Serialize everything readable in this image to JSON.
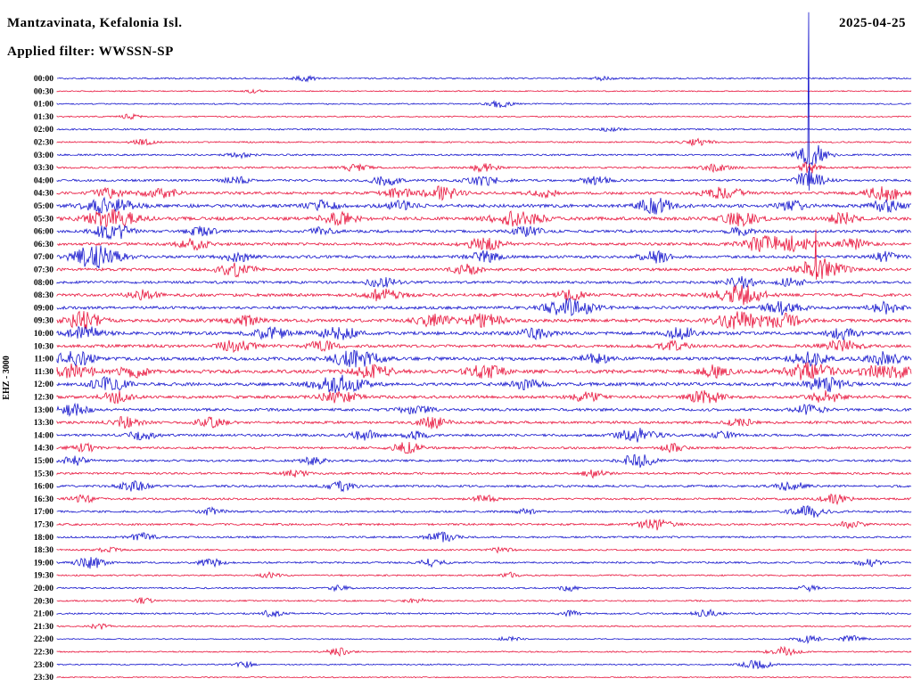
{
  "header": {
    "station_title": "Mantzavinata, Kefalonia Isl.",
    "filter_label": "Applied filter: WWSSN-SP",
    "date": "2025-04-25"
  },
  "axis": {
    "left_label": "EHZ - 3000"
  },
  "chart_data": {
    "type": "line",
    "subtype": "helicorder-seismogram",
    "title": "Mantzavinata, Kefalonia Isl.",
    "filter": "WWSSN-SP",
    "date": "2025-04-25",
    "channel_scale_label": "EHZ - 3000",
    "row_interval_minutes": 30,
    "xlabel": "",
    "ylabel": "",
    "grid": false,
    "legend": "none",
    "colors": {
      "blue": "#1414cc",
      "red": "#e8143c"
    },
    "rows": [
      {
        "label": "00:00",
        "color": "blue",
        "noise": 0.8,
        "bursts": [
          [
            0.29,
            0.01,
            2.5
          ],
          [
            0.64,
            0.008,
            2
          ]
        ]
      },
      {
        "label": "00:30",
        "color": "red",
        "noise": 0.6,
        "bursts": [
          [
            0.23,
            0.006,
            2
          ]
        ]
      },
      {
        "label": "01:00",
        "color": "blue",
        "noise": 0.7,
        "bursts": [
          [
            0.52,
            0.01,
            4
          ]
        ]
      },
      {
        "label": "01:30",
        "color": "red",
        "noise": 0.7,
        "bursts": [
          [
            0.085,
            0.008,
            2.5
          ]
        ]
      },
      {
        "label": "02:00",
        "color": "blue",
        "noise": 0.8,
        "bursts": [
          [
            0.65,
            0.01,
            2
          ]
        ]
      },
      {
        "label": "02:30",
        "color": "red",
        "noise": 0.8,
        "bursts": [
          [
            0.1,
            0.01,
            3
          ],
          [
            0.75,
            0.012,
            3.5
          ]
        ]
      },
      {
        "label": "03:00",
        "color": "blue",
        "noise": 0.9,
        "bursts": [
          [
            0.215,
            0.01,
            3
          ],
          [
            0.88,
            0.0012,
            160
          ],
          [
            0.885,
            0.012,
            12
          ]
        ]
      },
      {
        "label": "03:30",
        "color": "red",
        "noise": 1.0,
        "bursts": [
          [
            0.35,
            0.012,
            4
          ],
          [
            0.5,
            0.012,
            4
          ],
          [
            0.77,
            0.012,
            4
          ],
          [
            0.88,
            0.008,
            6
          ]
        ]
      },
      {
        "label": "04:00",
        "color": "blue",
        "noise": 1.2,
        "bursts": [
          [
            0.21,
            0.01,
            4
          ],
          [
            0.385,
            0.012,
            5
          ],
          [
            0.5,
            0.015,
            5
          ],
          [
            0.63,
            0.012,
            4
          ],
          [
            0.88,
            0.012,
            10
          ]
        ]
      },
      {
        "label": "04:30",
        "color": "red",
        "noise": 1.5,
        "bursts": [
          [
            0.06,
            0.012,
            5
          ],
          [
            0.12,
            0.015,
            6
          ],
          [
            0.4,
            0.012,
            5
          ],
          [
            0.45,
            0.015,
            7
          ],
          [
            0.57,
            0.012,
            4
          ],
          [
            0.78,
            0.015,
            7
          ],
          [
            0.97,
            0.015,
            8
          ]
        ]
      },
      {
        "label": "05:00",
        "color": "blue",
        "noise": 1.8,
        "bursts": [
          [
            0.06,
            0.02,
            8
          ],
          [
            0.31,
            0.012,
            5
          ],
          [
            0.4,
            0.012,
            5
          ],
          [
            0.7,
            0.015,
            8
          ],
          [
            0.86,
            0.012,
            5
          ],
          [
            0.97,
            0.012,
            6
          ]
        ]
      },
      {
        "label": "05:30",
        "color": "red",
        "noise": 1.8,
        "bursts": [
          [
            0.065,
            0.02,
            10
          ],
          [
            0.33,
            0.015,
            6
          ],
          [
            0.54,
            0.02,
            8
          ],
          [
            0.8,
            0.015,
            7
          ],
          [
            0.92,
            0.012,
            6
          ]
        ]
      },
      {
        "label": "06:00",
        "color": "blue",
        "noise": 1.5,
        "bursts": [
          [
            0.065,
            0.015,
            9
          ],
          [
            0.17,
            0.012,
            5
          ],
          [
            0.31,
            0.01,
            4
          ],
          [
            0.55,
            0.012,
            5
          ],
          [
            0.8,
            0.01,
            4
          ]
        ]
      },
      {
        "label": "06:30",
        "color": "red",
        "noise": 1.5,
        "bursts": [
          [
            0.16,
            0.012,
            6
          ],
          [
            0.5,
            0.015,
            6
          ],
          [
            0.82,
            0.015,
            7
          ],
          [
            0.86,
            0.02,
            8
          ],
          [
            0.93,
            0.012,
            6
          ]
        ]
      },
      {
        "label": "07:00",
        "color": "blue",
        "noise": 1.5,
        "bursts": [
          [
            0.045,
            0.02,
            12
          ],
          [
            0.21,
            0.012,
            5
          ],
          [
            0.5,
            0.012,
            6
          ],
          [
            0.7,
            0.012,
            6
          ],
          [
            0.97,
            0.01,
            5
          ]
        ]
      },
      {
        "label": "07:30",
        "color": "red",
        "noise": 1.5,
        "bursts": [
          [
            0.21,
            0.015,
            7
          ],
          [
            0.48,
            0.012,
            5
          ],
          [
            0.888,
            0.0015,
            45
          ],
          [
            0.893,
            0.018,
            12
          ]
        ]
      },
      {
        "label": "08:00",
        "color": "blue",
        "noise": 1.4,
        "bursts": [
          [
            0.38,
            0.012,
            5
          ],
          [
            0.8,
            0.012,
            6
          ],
          [
            0.86,
            0.01,
            5
          ]
        ]
      },
      {
        "label": "08:30",
        "color": "red",
        "noise": 1.6,
        "bursts": [
          [
            0.1,
            0.012,
            5
          ],
          [
            0.38,
            0.015,
            6
          ],
          [
            0.6,
            0.012,
            5
          ],
          [
            0.8,
            0.02,
            10
          ]
        ]
      },
      {
        "label": "09:00",
        "color": "blue",
        "noise": 1.6,
        "bursts": [
          [
            0.6,
            0.02,
            9
          ],
          [
            0.85,
            0.015,
            7
          ],
          [
            0.97,
            0.012,
            6
          ]
        ]
      },
      {
        "label": "09:30",
        "color": "red",
        "noise": 1.8,
        "bursts": [
          [
            0.03,
            0.015,
            9
          ],
          [
            0.22,
            0.012,
            5
          ],
          [
            0.44,
            0.015,
            6
          ],
          [
            0.5,
            0.015,
            7
          ],
          [
            0.8,
            0.02,
            9
          ],
          [
            0.85,
            0.015,
            7
          ]
        ]
      },
      {
        "label": "10:00",
        "color": "blue",
        "noise": 1.8,
        "bursts": [
          [
            0.03,
            0.015,
            8
          ],
          [
            0.25,
            0.015,
            6
          ],
          [
            0.33,
            0.015,
            7
          ],
          [
            0.56,
            0.012,
            6
          ],
          [
            0.73,
            0.012,
            6
          ],
          [
            0.92,
            0.012,
            6
          ]
        ]
      },
      {
        "label": "10:30",
        "color": "red",
        "noise": 1.6,
        "bursts": [
          [
            0.21,
            0.015,
            6
          ],
          [
            0.31,
            0.012,
            5
          ],
          [
            0.72,
            0.012,
            5
          ],
          [
            0.92,
            0.015,
            6
          ]
        ]
      },
      {
        "label": "11:00",
        "color": "blue",
        "noise": 1.8,
        "bursts": [
          [
            0.02,
            0.015,
            8
          ],
          [
            0.35,
            0.02,
            9
          ],
          [
            0.63,
            0.012,
            5
          ],
          [
            0.88,
            0.015,
            7
          ],
          [
            0.97,
            0.015,
            7
          ]
        ]
      },
      {
        "label": "11:30",
        "color": "red",
        "noise": 2.0,
        "bursts": [
          [
            0.02,
            0.015,
            8
          ],
          [
            0.09,
            0.012,
            6
          ],
          [
            0.37,
            0.015,
            7
          ],
          [
            0.5,
            0.015,
            7
          ],
          [
            0.77,
            0.012,
            6
          ],
          [
            0.88,
            0.02,
            9
          ],
          [
            0.97,
            0.02,
            8
          ]
        ]
      },
      {
        "label": "12:00",
        "color": "blue",
        "noise": 1.8,
        "bursts": [
          [
            0.06,
            0.015,
            7
          ],
          [
            0.33,
            0.02,
            9
          ],
          [
            0.55,
            0.012,
            5
          ],
          [
            0.9,
            0.015,
            8
          ]
        ]
      },
      {
        "label": "12:30",
        "color": "red",
        "noise": 1.6,
        "bursts": [
          [
            0.07,
            0.012,
            6
          ],
          [
            0.33,
            0.015,
            6
          ],
          [
            0.62,
            0.012,
            5
          ],
          [
            0.76,
            0.015,
            7
          ],
          [
            0.9,
            0.012,
            6
          ]
        ]
      },
      {
        "label": "13:00",
        "color": "blue",
        "noise": 1.5,
        "bursts": [
          [
            0.02,
            0.012,
            6
          ],
          [
            0.42,
            0.012,
            5
          ],
          [
            0.88,
            0.012,
            5
          ]
        ]
      },
      {
        "label": "13:30",
        "color": "red",
        "noise": 1.4,
        "bursts": [
          [
            0.08,
            0.012,
            6
          ],
          [
            0.18,
            0.012,
            5
          ],
          [
            0.44,
            0.012,
            6
          ],
          [
            0.8,
            0.01,
            4
          ]
        ]
      },
      {
        "label": "14:00",
        "color": "blue",
        "noise": 1.3,
        "bursts": [
          [
            0.1,
            0.012,
            5
          ],
          [
            0.36,
            0.012,
            5
          ],
          [
            0.42,
            0.01,
            4
          ],
          [
            0.68,
            0.015,
            8
          ],
          [
            0.78,
            0.01,
            4
          ]
        ]
      },
      {
        "label": "14:30",
        "color": "red",
        "noise": 1.2,
        "bursts": [
          [
            0.03,
            0.01,
            5
          ],
          [
            0.41,
            0.012,
            6
          ],
          [
            0.72,
            0.01,
            4
          ]
        ]
      },
      {
        "label": "15:00",
        "color": "blue",
        "noise": 1.2,
        "bursts": [
          [
            0.02,
            0.01,
            5
          ],
          [
            0.3,
            0.01,
            4
          ],
          [
            0.68,
            0.012,
            8
          ]
        ]
      },
      {
        "label": "15:30",
        "color": "red",
        "noise": 1.1,
        "bursts": [
          [
            0.28,
            0.01,
            4
          ],
          [
            0.63,
            0.01,
            4
          ]
        ]
      },
      {
        "label": "16:00",
        "color": "blue",
        "noise": 1.2,
        "bursts": [
          [
            0.09,
            0.012,
            5
          ],
          [
            0.33,
            0.012,
            5
          ],
          [
            0.86,
            0.012,
            5
          ]
        ]
      },
      {
        "label": "16:30",
        "color": "red",
        "noise": 1.1,
        "bursts": [
          [
            0.03,
            0.01,
            4
          ],
          [
            0.5,
            0.01,
            4
          ],
          [
            0.91,
            0.012,
            5
          ]
        ]
      },
      {
        "label": "17:00",
        "color": "blue",
        "noise": 1.1,
        "bursts": [
          [
            0.18,
            0.01,
            4
          ],
          [
            0.55,
            0.008,
            3
          ],
          [
            0.88,
            0.015,
            6
          ]
        ]
      },
      {
        "label": "17:30",
        "color": "red",
        "noise": 1.1,
        "bursts": [
          [
            0.7,
            0.012,
            7
          ],
          [
            0.93,
            0.01,
            4
          ]
        ]
      },
      {
        "label": "18:00",
        "color": "blue",
        "noise": 1.0,
        "bursts": [
          [
            0.1,
            0.01,
            4
          ],
          [
            0.45,
            0.012,
            5
          ]
        ]
      },
      {
        "label": "18:30",
        "color": "red",
        "noise": 0.9,
        "bursts": [
          [
            0.06,
            0.008,
            3
          ],
          [
            0.52,
            0.008,
            3
          ]
        ]
      },
      {
        "label": "19:00",
        "color": "blue",
        "noise": 1.0,
        "bursts": [
          [
            0.04,
            0.012,
            6
          ],
          [
            0.18,
            0.01,
            4
          ],
          [
            0.44,
            0.01,
            4
          ],
          [
            0.95,
            0.01,
            4
          ]
        ]
      },
      {
        "label": "19:30",
        "color": "red",
        "noise": 0.8,
        "bursts": [
          [
            0.25,
            0.008,
            3
          ],
          [
            0.53,
            0.008,
            3
          ]
        ]
      },
      {
        "label": "20:00",
        "color": "blue",
        "noise": 0.8,
        "bursts": [
          [
            0.33,
            0.008,
            3
          ],
          [
            0.6,
            0.008,
            3
          ],
          [
            0.88,
            0.008,
            3
          ]
        ]
      },
      {
        "label": "20:30",
        "color": "red",
        "noise": 0.8,
        "bursts": [
          [
            0.1,
            0.008,
            3
          ],
          [
            0.42,
            0.008,
            3
          ]
        ]
      },
      {
        "label": "21:00",
        "color": "blue",
        "noise": 0.9,
        "bursts": [
          [
            0.25,
            0.01,
            4
          ],
          [
            0.6,
            0.008,
            3
          ],
          [
            0.76,
            0.01,
            4
          ]
        ]
      },
      {
        "label": "21:30",
        "color": "red",
        "noise": 0.7,
        "bursts": [
          [
            0.05,
            0.008,
            3
          ]
        ]
      },
      {
        "label": "22:00",
        "color": "blue",
        "noise": 0.6,
        "bursts": [
          [
            0.53,
            0.008,
            3
          ],
          [
            0.88,
            0.01,
            4
          ],
          [
            0.93,
            0.01,
            4
          ]
        ]
      },
      {
        "label": "22:30",
        "color": "red",
        "noise": 0.7,
        "bursts": [
          [
            0.33,
            0.01,
            4
          ],
          [
            0.85,
            0.012,
            5
          ]
        ]
      },
      {
        "label": "23:00",
        "color": "blue",
        "noise": 0.7,
        "bursts": [
          [
            0.22,
            0.008,
            3
          ],
          [
            0.82,
            0.012,
            5
          ]
        ]
      },
      {
        "label": "23:30",
        "color": "red",
        "noise": 0.6,
        "bursts": []
      }
    ]
  }
}
